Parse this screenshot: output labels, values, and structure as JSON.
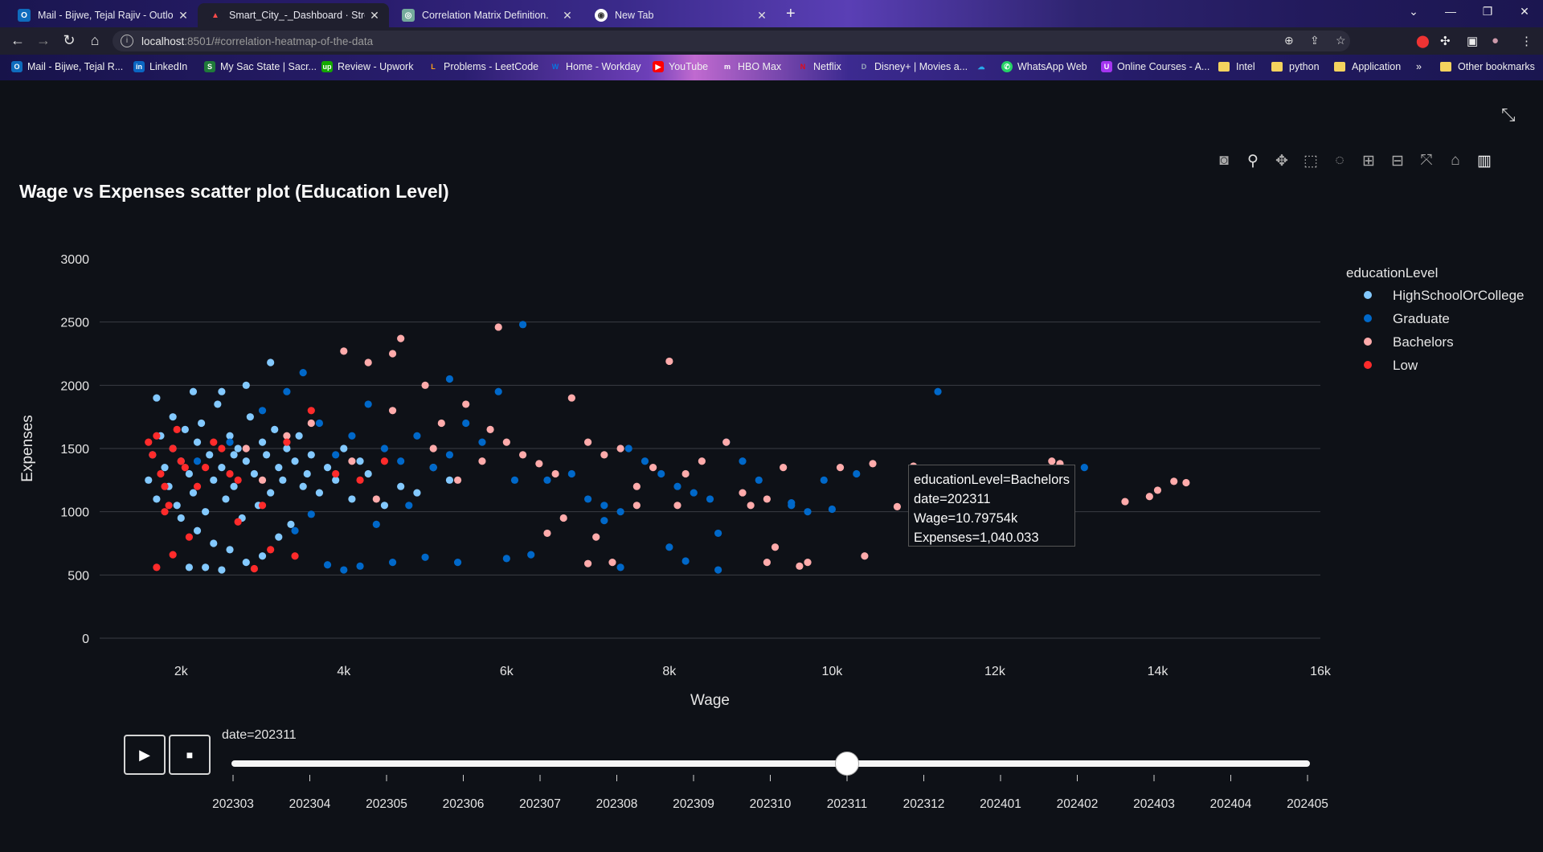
{
  "browser": {
    "tabs": [
      {
        "label": "Mail - Bijwe, Tejal Rajiv - Outlook",
        "icon": "outlook-icon",
        "active": false
      },
      {
        "label": "Smart_City_-_Dashboard · Stream",
        "icon": "streamlit-icon",
        "active": true
      },
      {
        "label": "Correlation Matrix Definition.",
        "icon": "chatgpt-icon",
        "active": false
      },
      {
        "label": "New Tab",
        "icon": "chrome-icon",
        "active": false
      }
    ],
    "url": {
      "host": "localhost",
      "rest": ":8501/#correlation-heatmap-of-the-data"
    },
    "bookmarks": [
      {
        "label": "Mail - Bijwe, Tejal R...",
        "icon": "outlook-icon",
        "color": "#0f6cbd"
      },
      {
        "label": "LinkedIn",
        "icon": "linkedin-icon",
        "color": "#0a66c2"
      },
      {
        "label": "My Sac State | Sacr...",
        "icon": "sac-state-icon",
        "color": "#1f7a3a"
      },
      {
        "label": "Review - Upwork",
        "icon": "upwork-icon",
        "color": "#14a800"
      },
      {
        "label": "Problems - LeetCode",
        "icon": "leetcode-icon",
        "color": "#ffa116"
      },
      {
        "label": "Home - Workday",
        "icon": "workday-icon",
        "color": "#0875e1"
      },
      {
        "label": "YouTube",
        "icon": "youtube-icon",
        "color": "#ff0000"
      },
      {
        "label": "HBO Max",
        "icon": "hbo-max-icon",
        "color": "#5822b4"
      },
      {
        "label": "Netflix",
        "icon": "netflix-icon",
        "color": "#e50914"
      },
      {
        "label": "Disney+ | Movies a...",
        "icon": "disney-icon",
        "color": "#113ccf"
      },
      {
        "label": "",
        "icon": "onedrive-icon",
        "color": "#28a8ea"
      },
      {
        "label": "WhatsApp Web",
        "icon": "whatsapp-icon",
        "color": "#25d366"
      },
      {
        "label": "Online Courses - A...",
        "icon": "courses-icon",
        "color": "#a435f0"
      },
      {
        "label": "Intel",
        "icon": "folder-icon",
        "color": "#f4d35e"
      },
      {
        "label": "python",
        "icon": "folder-icon",
        "color": "#f4d35e"
      },
      {
        "label": "Application",
        "icon": "folder-icon",
        "color": "#f4d35e"
      }
    ],
    "more_bookmarks": "»",
    "other_bookmarks": "Other bookmarks"
  },
  "plot": {
    "title": "Wage vs Expenses scatter plot (Education Level)",
    "hover": {
      "line1": "educationLevel=Bachelors",
      "line2": "date=202311",
      "line3": "Wage=10.79754k",
      "line4": "Expenses=1,040.033"
    },
    "slider": {
      "current_label": "date=202311",
      "current_index": 8,
      "steps": [
        "202303",
        "202304",
        "202305",
        "202306",
        "202307",
        "202308",
        "202309",
        "202310",
        "202311",
        "202312",
        "202401",
        "202402",
        "202403",
        "202404",
        "202405"
      ]
    },
    "colors": {
      "background": "#0e1117",
      "grid": "#3a3d44",
      "text": "#fafafa"
    }
  },
  "chart_data": {
    "type": "scatter",
    "xlabel": "Wage",
    "ylabel": "Expenses",
    "xlim": [
      1000,
      16000
    ],
    "ylim": [
      0,
      3000
    ],
    "xticks": [
      2000,
      4000,
      6000,
      8000,
      10000,
      12000,
      14000,
      16000
    ],
    "xtick_labels": [
      "2k",
      "4k",
      "6k",
      "8k",
      "10k",
      "12k",
      "14k",
      "16k"
    ],
    "yticks": [
      0,
      500,
      1000,
      1500,
      2000,
      2500,
      3000
    ],
    "grid": true,
    "legend_title": "educationLevel",
    "legend_position": "right",
    "series": [
      {
        "name": "HighSchoolOrCollege",
        "color": "#83c9ff",
        "points": [
          [
            1600,
            1250
          ],
          [
            1650,
            1450
          ],
          [
            1700,
            1100
          ],
          [
            1750,
            1600
          ],
          [
            1800,
            1350
          ],
          [
            1850,
            1200
          ],
          [
            1900,
            1500
          ],
          [
            1950,
            1050
          ],
          [
            2000,
            1400
          ],
          [
            2050,
            1650
          ],
          [
            2100,
            1300
          ],
          [
            2150,
            1150
          ],
          [
            2200,
            1550
          ],
          [
            2250,
            1700
          ],
          [
            2300,
            1000
          ],
          [
            2350,
            1450
          ],
          [
            2400,
            1250
          ],
          [
            2450,
            1850
          ],
          [
            2500,
            1350
          ],
          [
            2550,
            1100
          ],
          [
            2600,
            1600
          ],
          [
            2650,
            1200
          ],
          [
            2700,
            1500
          ],
          [
            2750,
            950
          ],
          [
            2800,
            1400
          ],
          [
            2850,
            1750
          ],
          [
            2900,
            1300
          ],
          [
            2950,
            1050
          ],
          [
            3000,
            1550
          ],
          [
            3050,
            1450
          ],
          [
            3100,
            1150
          ],
          [
            3150,
            1650
          ],
          [
            3200,
            1350
          ],
          [
            3250,
            1250
          ],
          [
            3300,
            1500
          ],
          [
            3350,
            900
          ],
          [
            3400,
            1400
          ],
          [
            3450,
            1600
          ],
          [
            3500,
            1200
          ],
          [
            3550,
            1300
          ],
          [
            1700,
            1900
          ],
          [
            2000,
            950
          ],
          [
            2200,
            850
          ],
          [
            2400,
            750
          ],
          [
            2600,
            700
          ],
          [
            2800,
            600
          ],
          [
            2300,
            560
          ],
          [
            2100,
            560
          ],
          [
            2500,
            540
          ],
          [
            3000,
            650
          ],
          [
            3200,
            800
          ],
          [
            3600,
            1450
          ],
          [
            3700,
            1150
          ],
          [
            3800,
            1350
          ],
          [
            3900,
            1250
          ],
          [
            4000,
            1500
          ],
          [
            4100,
            1100
          ],
          [
            4200,
            1400
          ],
          [
            4300,
            1300
          ],
          [
            4500,
            1050
          ],
          [
            4700,
            1200
          ],
          [
            4900,
            1150
          ],
          [
            5100,
            1350
          ],
          [
            5300,
            1250
          ],
          [
            2500,
            1950
          ],
          [
            2800,
            2000
          ],
          [
            3100,
            2180
          ],
          [
            2650,
            1450
          ],
          [
            1900,
            1750
          ],
          [
            2150,
            1950
          ]
        ]
      },
      {
        "name": "Graduate",
        "color": "#0068c9",
        "points": [
          [
            2200,
            1400
          ],
          [
            2600,
            1550
          ],
          [
            3000,
            1800
          ],
          [
            3300,
            1950
          ],
          [
            3500,
            2100
          ],
          [
            3700,
            1700
          ],
          [
            3900,
            1450
          ],
          [
            4100,
            1600
          ],
          [
            4300,
            1850
          ],
          [
            4500,
            1500
          ],
          [
            4700,
            1400
          ],
          [
            4900,
            1600
          ],
          [
            5100,
            1350
          ],
          [
            5300,
            1450
          ],
          [
            5500,
            1700
          ],
          [
            5700,
            1550
          ],
          [
            5900,
            1950
          ],
          [
            5300,
            2050
          ],
          [
            6200,
            2480
          ],
          [
            6100,
            1250
          ],
          [
            6000,
            630
          ],
          [
            6300,
            660
          ],
          [
            6500,
            1250
          ],
          [
            6800,
            1300
          ],
          [
            7000,
            1100
          ],
          [
            7200,
            1050
          ],
          [
            7400,
            1000
          ],
          [
            7500,
            1500
          ],
          [
            7700,
            1400
          ],
          [
            7900,
            1300
          ],
          [
            8100,
            1200
          ],
          [
            8300,
            1150
          ],
          [
            8500,
            1100
          ],
          [
            8700,
            1550
          ],
          [
            8900,
            1400
          ],
          [
            9100,
            1250
          ],
          [
            9500,
            1050
          ],
          [
            9700,
            1000
          ],
          [
            9900,
            1250
          ],
          [
            10300,
            1300
          ],
          [
            11300,
            1950
          ],
          [
            13100,
            1350
          ],
          [
            3800,
            580
          ],
          [
            4000,
            540
          ],
          [
            4200,
            570
          ],
          [
            4600,
            600
          ],
          [
            5000,
            640
          ],
          [
            5400,
            600
          ],
          [
            7400,
            560
          ],
          [
            8000,
            720
          ],
          [
            8200,
            610
          ],
          [
            8600,
            830
          ],
          [
            8600,
            540
          ],
          [
            7200,
            930
          ],
          [
            9500,
            1070
          ],
          [
            10000,
            1020
          ],
          [
            3400,
            850
          ],
          [
            3600,
            980
          ],
          [
            4400,
            900
          ],
          [
            4800,
            1050
          ]
        ]
      },
      {
        "name": "Bachelors",
        "color": "#ffabab",
        "points": [
          [
            4000,
            2270
          ],
          [
            4300,
            2180
          ],
          [
            4600,
            2250
          ],
          [
            4700,
            2370
          ],
          [
            5000,
            2000
          ],
          [
            5200,
            1700
          ],
          [
            5500,
            1850
          ],
          [
            5800,
            1650
          ],
          [
            5900,
            2460
          ],
          [
            6000,
            1550
          ],
          [
            6200,
            1450
          ],
          [
            6400,
            1380
          ],
          [
            6600,
            1300
          ],
          [
            6800,
            1900
          ],
          [
            7000,
            1550
          ],
          [
            7200,
            1450
          ],
          [
            7400,
            1500
          ],
          [
            7600,
            1200
          ],
          [
            7800,
            1350
          ],
          [
            8000,
            2190
          ],
          [
            8200,
            1300
          ],
          [
            8400,
            1400
          ],
          [
            8700,
            1550
          ],
          [
            8900,
            1150
          ],
          [
            9200,
            1100
          ],
          [
            9400,
            1350
          ],
          [
            9700,
            600
          ],
          [
            9600,
            570
          ],
          [
            9300,
            720
          ],
          [
            9200,
            600
          ],
          [
            10100,
            1350
          ],
          [
            10400,
            650
          ],
          [
            10500,
            1380
          ],
          [
            10800,
            1040
          ],
          [
            11000,
            1360
          ],
          [
            12700,
            1400
          ],
          [
            12800,
            1380
          ],
          [
            13600,
            1080
          ],
          [
            13900,
            1120
          ],
          [
            14000,
            1170
          ],
          [
            14200,
            1240
          ],
          [
            14350,
            1230
          ],
          [
            6500,
            830
          ],
          [
            6700,
            950
          ],
          [
            7100,
            800
          ],
          [
            7000,
            590
          ],
          [
            7300,
            600
          ],
          [
            2800,
            1500
          ],
          [
            3000,
            1250
          ],
          [
            3300,
            1600
          ],
          [
            3600,
            1700
          ],
          [
            4100,
            1400
          ],
          [
            4400,
            1100
          ],
          [
            4600,
            1800
          ],
          [
            5100,
            1500
          ],
          [
            5400,
            1250
          ],
          [
            5700,
            1400
          ],
          [
            7600,
            1050
          ],
          [
            8100,
            1050
          ],
          [
            9000,
            1050
          ]
        ]
      },
      {
        "name": "Low",
        "color": "#ff2b2b",
        "points": [
          [
            1600,
            1550
          ],
          [
            1650,
            1450
          ],
          [
            1700,
            1600
          ],
          [
            1750,
            1300
          ],
          [
            1800,
            1200
          ],
          [
            1850,
            1050
          ],
          [
            1900,
            1500
          ],
          [
            1950,
            1650
          ],
          [
            2000,
            1400
          ],
          [
            2050,
            1350
          ],
          [
            1700,
            560
          ],
          [
            1900,
            660
          ],
          [
            2100,
            800
          ],
          [
            2300,
            1350
          ],
          [
            2500,
            1500
          ],
          [
            2700,
            1250
          ],
          [
            2900,
            550
          ],
          [
            3100,
            700
          ],
          [
            3300,
            1550
          ],
          [
            3600,
            1800
          ],
          [
            3900,
            1300
          ],
          [
            4200,
            1250
          ],
          [
            4500,
            1400
          ],
          [
            2700,
            920
          ],
          [
            3000,
            1050
          ],
          [
            2200,
            1200
          ],
          [
            2400,
            1550
          ],
          [
            1800,
            1000
          ],
          [
            2600,
            1300
          ],
          [
            3400,
            650
          ]
        ]
      }
    ]
  }
}
